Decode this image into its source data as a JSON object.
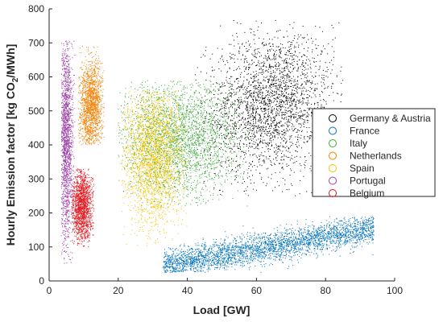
{
  "chart_data": {
    "type": "scatter",
    "xlabel": "Load [GW]",
    "ylabel_main": "Hourly Emission factor [kg CO",
    "ylabel_sub": "2",
    "ylabel_tail": "/MWh]",
    "xlim": [
      0,
      100
    ],
    "ylim": [
      0,
      800
    ],
    "xticks": [
      "0",
      "20",
      "40",
      "60",
      "80",
      "100"
    ],
    "yticks": [
      "0",
      "100",
      "200",
      "300",
      "400",
      "500",
      "600",
      "700",
      "800"
    ],
    "grid": false,
    "legend_placement": "right",
    "series": [
      {
        "name": "Germany & Austria",
        "color": "#000000",
        "cluster": {
          "x_range": [
            42,
            85
          ],
          "y_range": [
            250,
            770
          ],
          "x_center": 64,
          "y_center": 520,
          "count": 2600
        }
      },
      {
        "name": "France",
        "color": "#0072BD",
        "cluster": {
          "x_range": [
            33,
            94
          ],
          "y_range": [
            25,
            190
          ],
          "x_center": 62,
          "y_center": 105,
          "count": 3200
        }
      },
      {
        "name": "Italy",
        "color": "#3AAA35",
        "cluster": {
          "x_range": [
            20,
            58
          ],
          "y_range": [
            220,
            590
          ],
          "x_center": 38,
          "y_center": 420,
          "count": 2600
        }
      },
      {
        "name": "Netherlands",
        "color": "#F57F00",
        "cluster": {
          "x_range": [
            8.5,
            16
          ],
          "y_range": [
            400,
            700
          ],
          "x_center": 12,
          "y_center": 510,
          "count": 1500
        }
      },
      {
        "name": "Spain",
        "color": "#F5C400",
        "cluster": {
          "x_range": [
            21,
            40
          ],
          "y_range": [
            100,
            560
          ],
          "x_center": 30,
          "y_center": 370,
          "count": 2300
        }
      },
      {
        "name": "Portugal",
        "color": "#9B3FA6",
        "cluster": {
          "x_range": [
            3.5,
            7.5
          ],
          "y_range": [
            50,
            705
          ],
          "x_center": 5,
          "y_center": 420,
          "count": 1600
        }
      },
      {
        "name": "Belgium",
        "color": "#E2161D",
        "cluster": {
          "x_range": [
            6.5,
            13
          ],
          "y_range": [
            100,
            330
          ],
          "x_center": 9.5,
          "y_center": 220,
          "count": 1500
        }
      }
    ]
  }
}
